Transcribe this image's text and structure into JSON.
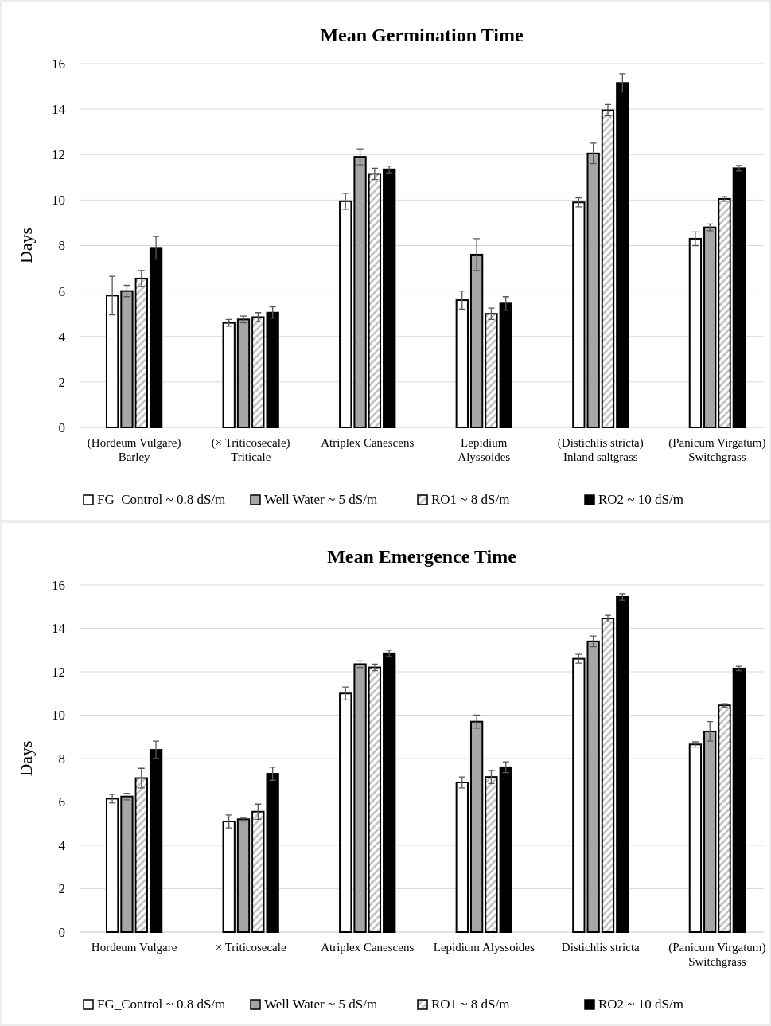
{
  "chart_data": [
    {
      "type": "bar",
      "title": "Mean Germination Time",
      "ylabel": "Days",
      "categories": [
        "(Hordeum Vulgare)\nBarley",
        "(× Triticosecale)\nTriticale",
        "Atriplex Canescens",
        "Lepidium\nAlyssoides",
        "(Distichlis stricta)\nInland saltgrass",
        "(Panicum Virgatum)\nSwitchgrass"
      ],
      "series": [
        {
          "name": "FG_Control ~ 0.8 dS/m",
          "color": "#ffffff",
          "values": [
            5.8,
            4.6,
            9.95,
            5.6,
            9.9,
            8.3
          ],
          "errors": [
            0.85,
            0.15,
            0.35,
            0.4,
            0.2,
            0.3
          ]
        },
        {
          "name": "Well Water ~ 5 dS/m",
          "color": "#a6a6a6",
          "values": [
            6.0,
            4.75,
            11.9,
            7.6,
            12.05,
            8.8
          ],
          "errors": [
            0.25,
            0.15,
            0.35,
            0.7,
            0.45,
            0.15
          ]
        },
        {
          "name": "RO1 ~ 8 dS/m",
          "color": "#bfbfbf",
          "values": [
            6.55,
            4.85,
            11.15,
            5.0,
            13.95,
            10.05
          ],
          "errors": [
            0.35,
            0.2,
            0.25,
            0.25,
            0.25,
            0.1
          ]
        },
        {
          "name": "RO2 ~ 10 dS/m",
          "color": "#000000",
          "values": [
            7.9,
            5.05,
            11.35,
            5.45,
            15.15,
            11.4
          ],
          "errors": [
            0.5,
            0.25,
            0.15,
            0.3,
            0.4,
            0.12
          ]
        }
      ],
      "ylim": [
        0,
        16
      ],
      "yticks": [
        0,
        2,
        4,
        6,
        8,
        10,
        12,
        14,
        16
      ],
      "grid": "y",
      "legend": "bottom"
    },
    {
      "type": "bar",
      "title": "Mean Emergence Time",
      "ylabel": "Days",
      "categories": [
        "Hordeum Vulgare",
        "× Triticosecale",
        "Atriplex Canescens",
        "Lepidium Alyssoides",
        "Distichlis stricta",
        "(Panicum Virgatum)\nSwitchgrass"
      ],
      "series": [
        {
          "name": "FG_Control ~ 0.8 dS/m",
          "color": "#ffffff",
          "values": [
            6.15,
            5.1,
            11.0,
            6.9,
            12.6,
            8.65
          ],
          "errors": [
            0.2,
            0.3,
            0.3,
            0.25,
            0.2,
            0.12
          ]
        },
        {
          "name": "Well Water ~ 5 dS/m",
          "color": "#a6a6a6",
          "values": [
            6.25,
            5.2,
            12.35,
            9.7,
            13.4,
            9.25
          ],
          "errors": [
            0.15,
            0.08,
            0.15,
            0.3,
            0.25,
            0.45
          ]
        },
        {
          "name": "RO1 ~ 8 dS/m",
          "color": "#bfbfbf",
          "values": [
            7.1,
            5.55,
            12.2,
            7.15,
            14.45,
            10.45
          ],
          "errors": [
            0.45,
            0.35,
            0.15,
            0.3,
            0.15,
            0.08
          ]
        },
        {
          "name": "RO2 ~ 10 dS/m",
          "color": "#000000",
          "values": [
            8.4,
            7.3,
            12.85,
            7.6,
            15.45,
            12.15
          ],
          "errors": [
            0.4,
            0.3,
            0.15,
            0.25,
            0.15,
            0.1
          ]
        }
      ],
      "ylim": [
        0,
        16
      ],
      "yticks": [
        0,
        2,
        4,
        6,
        8,
        10,
        12,
        14,
        16
      ],
      "grid": "y",
      "legend": "bottom"
    }
  ]
}
